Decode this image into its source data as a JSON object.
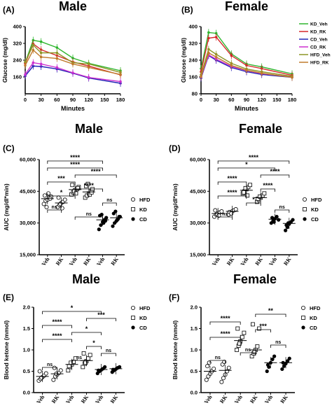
{
  "chart_data": [
    {
      "panel": "(A)",
      "type": "line",
      "title": "Male",
      "xlabel": "Minutes",
      "ylabel": "Glucose (mg/dl)",
      "x": [
        0,
        15,
        30,
        60,
        90,
        120,
        180
      ],
      "xticks": [
        0,
        30,
        60,
        90,
        120,
        150,
        180
      ],
      "yticks": [
        160,
        240,
        320,
        400
      ],
      "xlim": [
        0,
        180
      ],
      "ylim": [
        80,
        400
      ],
      "series": [
        {
          "name": "KD_Veh",
          "color": "#2db52d",
          "values": [
            228,
            335,
            328,
            300,
            250,
            225,
            190
          ]
        },
        {
          "name": "KD_RK",
          "color": "#d62728",
          "values": [
            225,
            318,
            290,
            262,
            232,
            212,
            170
          ]
        },
        {
          "name": "CD_Veh",
          "color": "#2124b5",
          "values": [
            165,
            212,
            210,
            198,
            178,
            155,
            130
          ]
        },
        {
          "name": "CD_RK",
          "color": "#cc2fcf",
          "values": [
            172,
            228,
            222,
            205,
            180,
            158,
            138
          ]
        },
        {
          "name": "HFD_Veh",
          "color": "#8c9626",
          "values": [
            232,
            312,
            275,
            275,
            228,
            222,
            182
          ]
        },
        {
          "name": "HFD_RK",
          "color": "#c07a2c",
          "values": [
            215,
            288,
            255,
            248,
            222,
            205,
            172
          ]
        }
      ]
    },
    {
      "panel": "(B)",
      "type": "line",
      "title": "Female",
      "xlabel": "Minutes",
      "ylabel": "Glucose (mg/dl)",
      "x": [
        0,
        15,
        30,
        60,
        90,
        120,
        180
      ],
      "xticks": [
        0,
        30,
        60,
        90,
        120,
        150,
        180
      ],
      "yticks": [
        80,
        160,
        240,
        320,
        400
      ],
      "xlim": [
        0,
        180
      ],
      "ylim": [
        80,
        400
      ],
      "series": [
        {
          "name": "KD_Veh",
          "color": "#2db52d",
          "values": [
            200,
            372,
            368,
            270,
            222,
            208,
            175
          ]
        },
        {
          "name": "KD_RK",
          "color": "#d62728",
          "values": [
            185,
            345,
            350,
            262,
            215,
            200,
            168
          ]
        },
        {
          "name": "CD_Veh",
          "color": "#2124b5",
          "values": [
            155,
            262,
            240,
            205,
            185,
            172,
            158
          ]
        },
        {
          "name": "CD_RK",
          "color": "#cc2fcf",
          "values": [
            160,
            265,
            245,
            210,
            190,
            176,
            160
          ]
        },
        {
          "name": "HFD_Veh",
          "color": "#8c9626",
          "values": [
            170,
            292,
            268,
            225,
            198,
            185,
            163
          ]
        },
        {
          "name": "HFD_RK",
          "color": "#c07a2c",
          "values": [
            162,
            275,
            255,
            215,
            192,
            178,
            158
          ]
        }
      ],
      "legend": [
        "KD_Veh",
        "KD_RK",
        "CD_Veh",
        "CD_RK",
        "HFD_Veh",
        "HFD_RK"
      ]
    },
    {
      "panel": "(C)",
      "type": "scatter",
      "title": "Male",
      "ylabel": "AUC (mg/dl*min)",
      "categories": [
        "Veh",
        "RK",
        "Veh",
        "RK",
        "Veh",
        "RK"
      ],
      "groups": [
        "HFD",
        "HFD",
        "KD",
        "KD",
        "CD",
        "CD"
      ],
      "yticks": [
        "15,000",
        "30,000",
        "45,000",
        "60,000"
      ],
      "ylim": [
        15000,
        60000
      ],
      "legend": [
        "HFD",
        "KD",
        "CD"
      ],
      "points": [
        [
          39000,
          40500,
          41000,
          42000,
          42500,
          43000,
          37500,
          44000,
          41500
        ],
        [
          37500,
          38500,
          39500,
          40000,
          41000,
          42000,
          39000,
          37000
        ],
        [
          43500,
          44500,
          45500,
          46000,
          47000,
          48000,
          45000,
          44000,
          46500
        ],
        [
          42000,
          43000,
          44000,
          45000,
          46000,
          47500,
          48500,
          43500,
          44500
        ],
        [
          27000,
          29000,
          30500,
          31500,
          32500,
          33500,
          34000,
          30000,
          31000
        ],
        [
          28500,
          30000,
          31000,
          32000,
          33000,
          34500,
          35500,
          31500,
          33000
        ]
      ],
      "medians": [
        41500,
        39500,
        45800,
        44700,
        31500,
        32500
      ],
      "sig": [
        {
          "from": 2,
          "to": 4,
          "label": "ns"
        },
        {
          "from": 0,
          "to": 1,
          "label": "ns"
        },
        {
          "from": 4,
          "to": 5,
          "label": "ns"
        },
        {
          "from": 0,
          "to": 2,
          "label": "*"
        },
        {
          "from": 2,
          "to": 4,
          "label": "****"
        },
        {
          "from": 0,
          "to": 2,
          "label": "***"
        },
        {
          "from": 2,
          "to": 5,
          "label": "****"
        },
        {
          "from": 0,
          "to": 4,
          "label": "****"
        },
        {
          "from": 0,
          "to": 4,
          "label": "****"
        }
      ]
    },
    {
      "panel": "(D)",
      "type": "scatter",
      "title": "Female",
      "ylabel": "AUC (mg/dl*min)",
      "categories": [
        "Veh",
        "RK",
        "Veh",
        "RK",
        "Veh",
        "RK"
      ],
      "groups": [
        "HFD",
        "HFD",
        "KD",
        "KD",
        "CD",
        "CD"
      ],
      "yticks": [
        "15,000",
        "30,000",
        "45,000",
        "60,000"
      ],
      "ylim": [
        15000,
        60000
      ],
      "legend": [
        "HFD",
        "KD",
        "CD"
      ],
      "points": [
        [
          33000,
          34000,
          34500,
          35000,
          35500,
          36000,
          34200,
          33500
        ],
        [
          34000,
          35000,
          35500,
          36000,
          36500,
          35200,
          34500
        ],
        [
          44000,
          45000,
          46000,
          47000,
          48000,
          44500,
          46500,
          43000
        ],
        [
          40000,
          41000,
          42000,
          43000,
          44000,
          41500,
          42500
        ],
        [
          30000,
          31000,
          32000,
          33000,
          31500,
          32500,
          30500
        ],
        [
          26500,
          28000,
          29500,
          30500,
          31500,
          29000,
          30000
        ]
      ],
      "medians": [
        34500,
        35500,
        45500,
        42000,
        31800,
        29800
      ],
      "sig": [
        {
          "from": 0,
          "to": 1,
          "label": "ns"
        },
        {
          "from": 4,
          "to": 5,
          "label": "ns"
        },
        {
          "from": 2,
          "to": 3,
          "label": "*"
        },
        {
          "from": 0,
          "to": 2,
          "label": "****"
        },
        {
          "from": 3,
          "to": 4,
          "label": "****"
        },
        {
          "from": 0,
          "to": 2,
          "label": "****"
        },
        {
          "from": 3,
          "to": 5,
          "label": "****"
        },
        {
          "from": 0,
          "to": 4,
          "label": "*"
        },
        {
          "from": 0,
          "to": 5,
          "label": "****"
        }
      ]
    },
    {
      "panel": "(E)",
      "type": "scatter",
      "title": "Male",
      "ylabel": "Blood ketone (mmol)",
      "categories": [
        "Veh",
        "RK",
        "Veh",
        "RK",
        "Veh",
        "RK"
      ],
      "groups": [
        "HFD",
        "HFD",
        "KD",
        "KD",
        "CD",
        "CD"
      ],
      "yticks": [
        "0.0",
        "0.5",
        "1.0",
        "1.5",
        "2.0"
      ],
      "ylim": [
        0,
        2.0
      ],
      "legend": [
        "HFD",
        "KD",
        "CD"
      ],
      "points": [
        [
          0.28,
          0.32,
          0.36,
          0.4,
          0.45,
          0.5,
          0.35
        ],
        [
          0.3,
          0.38,
          0.42,
          0.46,
          0.52,
          0.58,
          0.44
        ],
        [
          0.52,
          0.6,
          0.66,
          0.72,
          0.8,
          0.62,
          0.7
        ],
        [
          0.6,
          0.68,
          0.74,
          0.8,
          0.88,
          0.92,
          0.7
        ],
        [
          0.45,
          0.5,
          0.53,
          0.56,
          0.6,
          0.52
        ],
        [
          0.48,
          0.52,
          0.55,
          0.58,
          0.6,
          0.54
        ]
      ],
      "medians": [
        0.38,
        0.44,
        0.66,
        0.75,
        0.54,
        0.56
      ],
      "sig": [
        {
          "from": 0,
          "to": 1,
          "label": "ns"
        },
        {
          "from": 2,
          "to": 3,
          "label": "ns"
        },
        {
          "from": 4,
          "to": 5,
          "label": "ns"
        },
        {
          "from": 3,
          "to": 4,
          "label": "*"
        },
        {
          "from": 0,
          "to": 2,
          "label": "****"
        },
        {
          "from": 2,
          "to": 4,
          "label": "*"
        },
        {
          "from": 0,
          "to": 2,
          "label": "****"
        },
        {
          "from": 3,
          "to": 5,
          "label": "***"
        },
        {
          "from": 0,
          "to": 4,
          "label": "*"
        }
      ]
    },
    {
      "panel": "(F)",
      "type": "scatter",
      "title": "Female",
      "ylabel": "Blood ketone (mmol)",
      "categories": [
        "Veh",
        "RK",
        "Veh",
        "RK",
        "Veh",
        "RK"
      ],
      "groups": [
        "HFD",
        "HFD",
        "KD",
        "KD",
        "CD",
        "CD"
      ],
      "yticks": [
        "0.0",
        "0.5",
        "1.0",
        "1.5",
        "2.0"
      ],
      "ylim": [
        0,
        2.0
      ],
      "legend": [
        "HFD",
        "KD",
        "CD"
      ],
      "points": [
        [
          0.3,
          0.38,
          0.44,
          0.5,
          0.56,
          0.62,
          0.7
        ],
        [
          0.25,
          0.34,
          0.42,
          0.5,
          0.58,
          0.66,
          0.72
        ],
        [
          1.0,
          1.1,
          1.2,
          1.3,
          1.4,
          1.5,
          1.15
        ],
        [
          0.85,
          0.92,
          1.0,
          1.08,
          1.5,
          1.6,
          0.95
        ],
        [
          0.5,
          0.6,
          0.7,
          0.78,
          0.85,
          0.65
        ],
        [
          0.55,
          0.62,
          0.68,
          0.74,
          0.8,
          0.7
        ]
      ],
      "medians": [
        0.5,
        0.52,
        1.22,
        1.0,
        0.7,
        0.7
      ],
      "sig": [
        {
          "from": 0,
          "to": 1,
          "label": "ns"
        },
        {
          "from": 2,
          "to": 3,
          "label": "ns"
        },
        {
          "from": 4,
          "to": 5,
          "label": "ns"
        },
        {
          "from": 0,
          "to": 2,
          "label": "****"
        },
        {
          "from": 3,
          "to": 4,
          "label": "***"
        },
        {
          "from": 0,
          "to": 2,
          "label": "****"
        },
        {
          "from": 3,
          "to": 5,
          "label": "**"
        }
      ]
    }
  ]
}
